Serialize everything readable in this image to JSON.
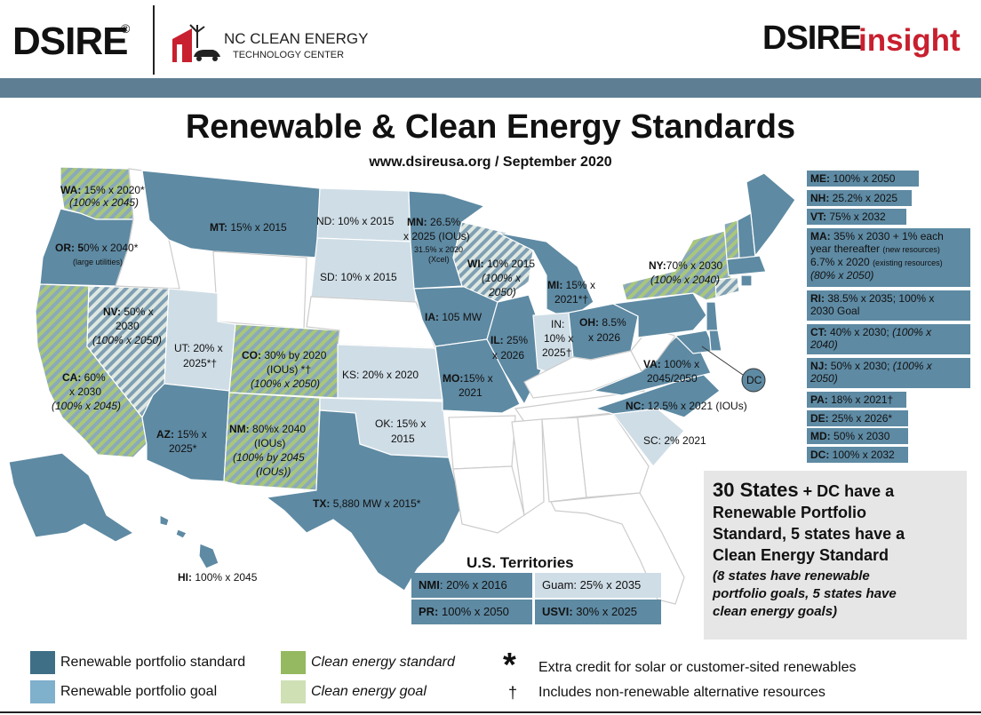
{
  "header": {
    "dsire_logo": "DSIRE",
    "registered_mark": "®",
    "nc_line1": "NC CLEAN ENERGY",
    "nc_line2": "TECHNOLOGY CENTER",
    "insight_part1": "DSIRE",
    "insight_part2": "insight"
  },
  "title": "Renewable & Clean Energy Standards",
  "subtitle": "www.dsireusa.org / September 2020",
  "colors": {
    "rps": "#5e8aa3",
    "rpg": "#cfdde6",
    "ces": "#94b960",
    "ceg": "#cfe0b5",
    "band": "#5e7f93",
    "brand_red": "#c8202f"
  },
  "map_labels": {
    "wa_code": "WA:",
    "wa_text": "15% x 2020*",
    "wa_goal": "(100% x 2045)",
    "or_code": "OR: 5",
    "or_text": "0% x 2040*",
    "or_note": "(large utilities)",
    "ca_code": "CA:",
    "ca_text1": "60%",
    "ca_text2": "x 2030",
    "ca_goal": "(100% x 2045)",
    "nv_code": "NV:",
    "nv_text1": "50% x",
    "nv_text2": "2030",
    "nv_goal": "(100% x 2050)",
    "mt_code": "MT:",
    "mt_text": "15% x 2015",
    "ut_text1": "UT: 20% x",
    "ut_text2": "2025*†",
    "co_code": "CO:",
    "co_text1": "30% by 2020",
    "co_text2": "(IOUs) *†",
    "co_goal": "(100% x 2050)",
    "az_code": "AZ:",
    "az_text1": "15% x",
    "az_text2": "2025*",
    "nm_code": "NM:",
    "nm_text1": "80%x 2040",
    "nm_text2": "(IOUs)",
    "nm_goal1": "(100% by 2045",
    "nm_goal2": "(IOUs))",
    "nd_text": "ND: 10% x 2015",
    "sd_text": "SD: 10% x 2015",
    "ks_text": "KS: 20% x 2020",
    "ok_text1": "OK: 15% x",
    "ok_text2": "2015",
    "tx_code": "TX:",
    "tx_text": "5,880 MW x 2015*",
    "mn_code": "MN:",
    "mn_text1": "26.5%",
    "mn_text2": "x 2025 (IOUs)",
    "mn_note1": "31.5% x 2020",
    "mn_note2": "(Xcel)",
    "ia_code": "IA:",
    "ia_text": "105 MW",
    "mo_code": "MO:",
    "mo_text1": "15% x",
    "mo_text2": "2021",
    "wi_code": "WI:",
    "wi_text": "10% 2015",
    "wi_goal1": "(100% x",
    "wi_goal2": "2050)",
    "il_code": "IL:",
    "il_text1": "25%",
    "il_text2": "x 2026",
    "mi_code": "MI:",
    "mi_text1": "15% x",
    "mi_text2": "2021*†",
    "in_text1": "IN:",
    "in_text2": "10% x",
    "in_text3": "2025†",
    "oh_code": "OH:",
    "oh_text1": "8.5%",
    "oh_text2": "x 2026",
    "ny_code": "NY:",
    "ny_text": "70% x 2030",
    "ny_goal": "(100% x 2040)",
    "va_code": "VA:",
    "va_text1": "100% x",
    "va_text2": "2045/2050",
    "nc_code": "NC:",
    "nc_text": "12.5% x 2021 (IOUs)",
    "sc_text": "SC: 2% 2021",
    "hi_code": "HI:",
    "hi_text": "100% x 2045",
    "dc_bubble": "DC"
  },
  "right_boxes": {
    "me_code": "ME:",
    "me_text": "100% x 2050",
    "nh_code": "NH:",
    "nh_text": "25.2% x 2025",
    "vt_code": "VT:",
    "vt_text": "75% x 2032",
    "ma_code": "MA:",
    "ma_text1": "35% x 2030 + 1% each",
    "ma_text2": "year thereafter",
    "ma_small1": "(new resources)",
    "ma_text3": "6.7% x 2020",
    "ma_small2": "(existing resources)",
    "ma_goal": "(80% x 2050)",
    "ri_code": "RI:",
    "ri_text1": "38.5% x 2035; 100% x",
    "ri_text2": "2030 Goal",
    "ct_code": "CT:",
    "ct_text1": "40% x 2030;",
    "ct_goal1": "(100% x",
    "ct_goal2": "2040)",
    "nj_code": "NJ:",
    "nj_text1": "50% x 2030;",
    "nj_goal1": "(100% x",
    "nj_goal2": "2050)",
    "pa_code": "PA:",
    "pa_text": "18% x 2021†",
    "de_code": "DE:",
    "de_text": "25% x 2026*",
    "md_code": "MD:",
    "md_text": "50% x 2030",
    "dc_code": "DC:",
    "dc_text": "100% x 2032"
  },
  "territories": {
    "title": "U.S. Territories",
    "nmi_code": "NMI",
    "nmi_text": ": 20% x 2016",
    "guam_text": "Guam: 25% x 2035",
    "pr_code": "PR:",
    "pr_text": "100% x 2050",
    "usvi_code": "USVI:",
    "usvi_text": "30% x 2025"
  },
  "summary": {
    "num": "30 States",
    "line1_rest": "+ DC have a",
    "line2": "Renewable Portfolio",
    "line3": "Standard, 5 states have a",
    "line4": "Clean Energy Standard",
    "sub1": "(8 states have renewable",
    "sub2": "portfolio goals, 5 states have",
    "sub3": "clean energy goals)"
  },
  "legend": {
    "rps": "Renewable portfolio standard",
    "rpg": "Renewable portfolio goal",
    "ces": "Clean energy standard",
    "ceg": "Clean energy goal",
    "asterisk_symbol": "*",
    "asterisk_text": "Extra credit for solar or customer-sited renewables",
    "dagger_symbol": "†",
    "dagger_text": "Includes non-renewable alternative resources"
  }
}
